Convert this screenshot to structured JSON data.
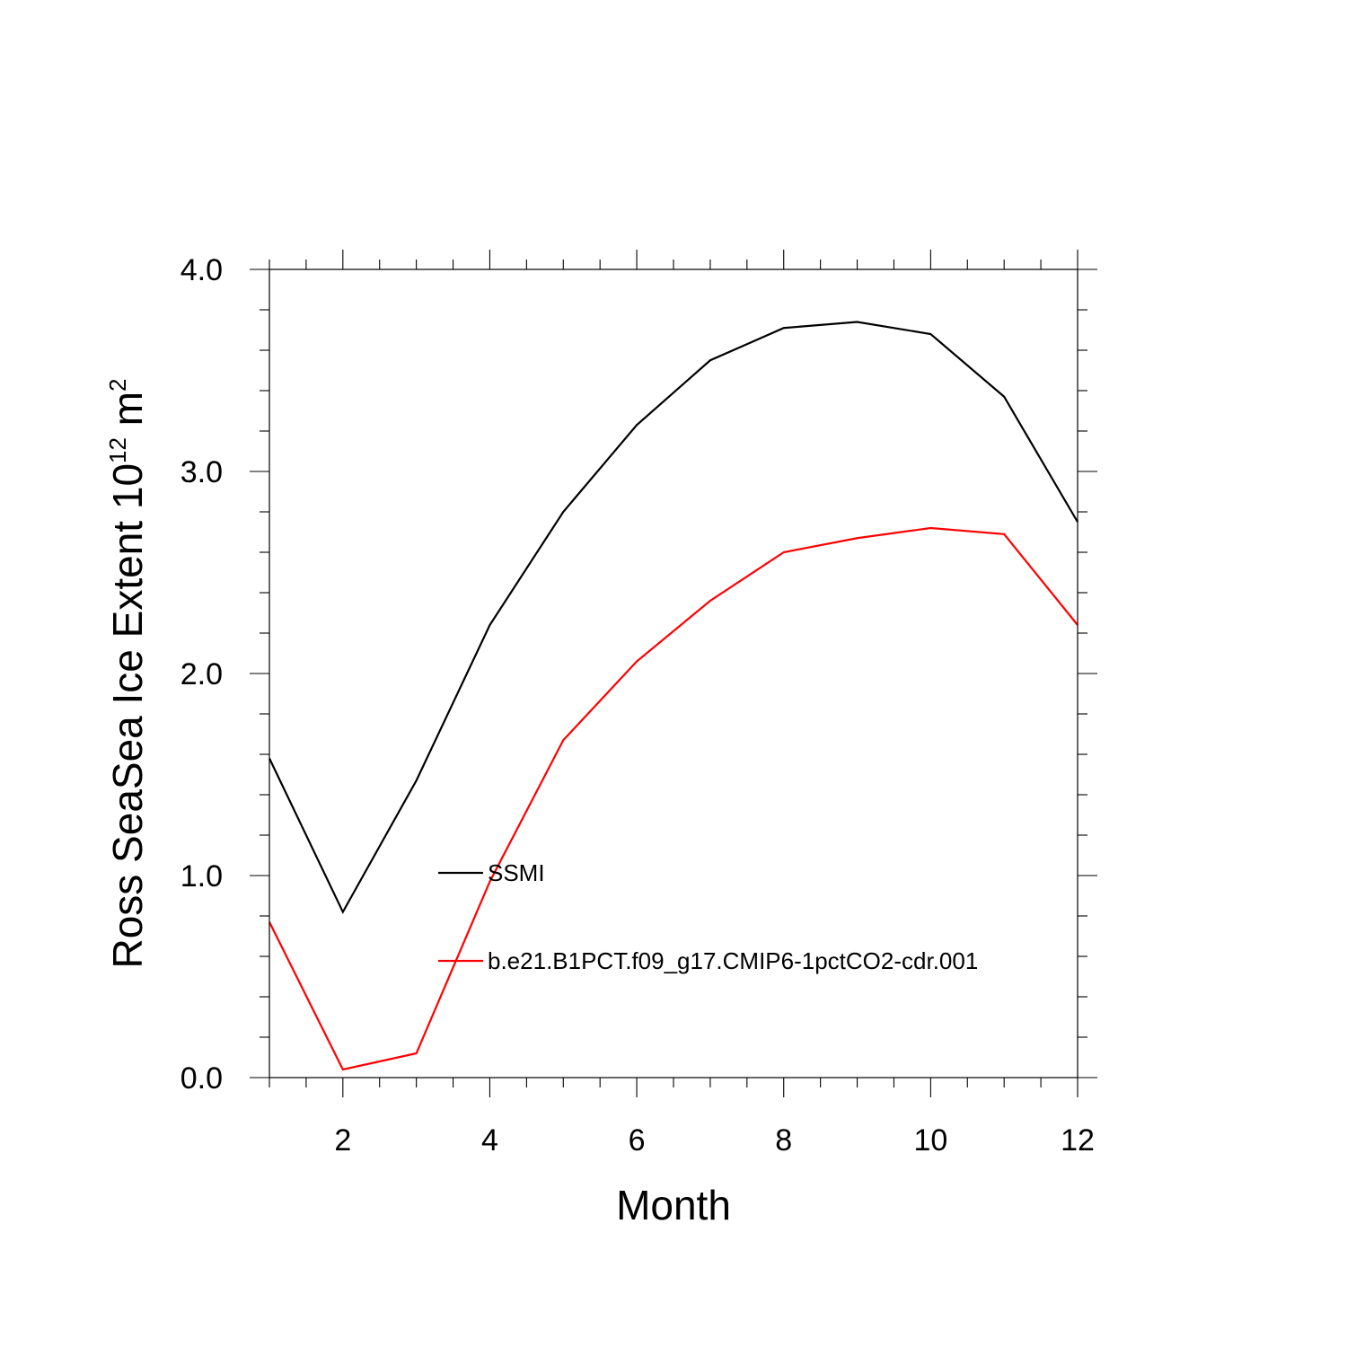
{
  "chart_data": {
    "type": "line",
    "xlabel": "Month",
    "ylabel": {
      "prefix": "Ross SeaSea Ice Extent 10",
      "exponent": "12",
      "unit": " m",
      "unit_exponent": "2"
    },
    "xlim": [
      1,
      12
    ],
    "ylim": [
      0,
      4
    ],
    "x_ticks": [
      2,
      4,
      6,
      8,
      10,
      12
    ],
    "x_tick_labels": [
      "2",
      "4",
      "6",
      "8",
      "10",
      "12"
    ],
    "y_ticks": [
      0,
      1,
      2,
      3,
      4
    ],
    "y_tick_labels": [
      "0.0",
      "1.0",
      "2.0",
      "3.0",
      "4.0"
    ],
    "grid": false,
    "legend_position": "inside-lower-center",
    "x": [
      1,
      2,
      3,
      4,
      5,
      6,
      7,
      8,
      9,
      10,
      11,
      12
    ],
    "series": [
      {
        "name": "SSMI",
        "color": "#000000",
        "values": [
          1.58,
          0.82,
          1.47,
          2.24,
          2.8,
          3.23,
          3.55,
          3.71,
          3.74,
          3.68,
          3.37,
          2.75
        ]
      },
      {
        "name": "b.e21.B1PCT.f09_g17.CMIP6-1pctCO2-cdr.001",
        "color": "#ff0000",
        "values": [
          0.77,
          0.04,
          0.12,
          0.97,
          1.67,
          2.06,
          2.36,
          2.6,
          2.67,
          2.72,
          2.69,
          2.24
        ]
      }
    ]
  }
}
